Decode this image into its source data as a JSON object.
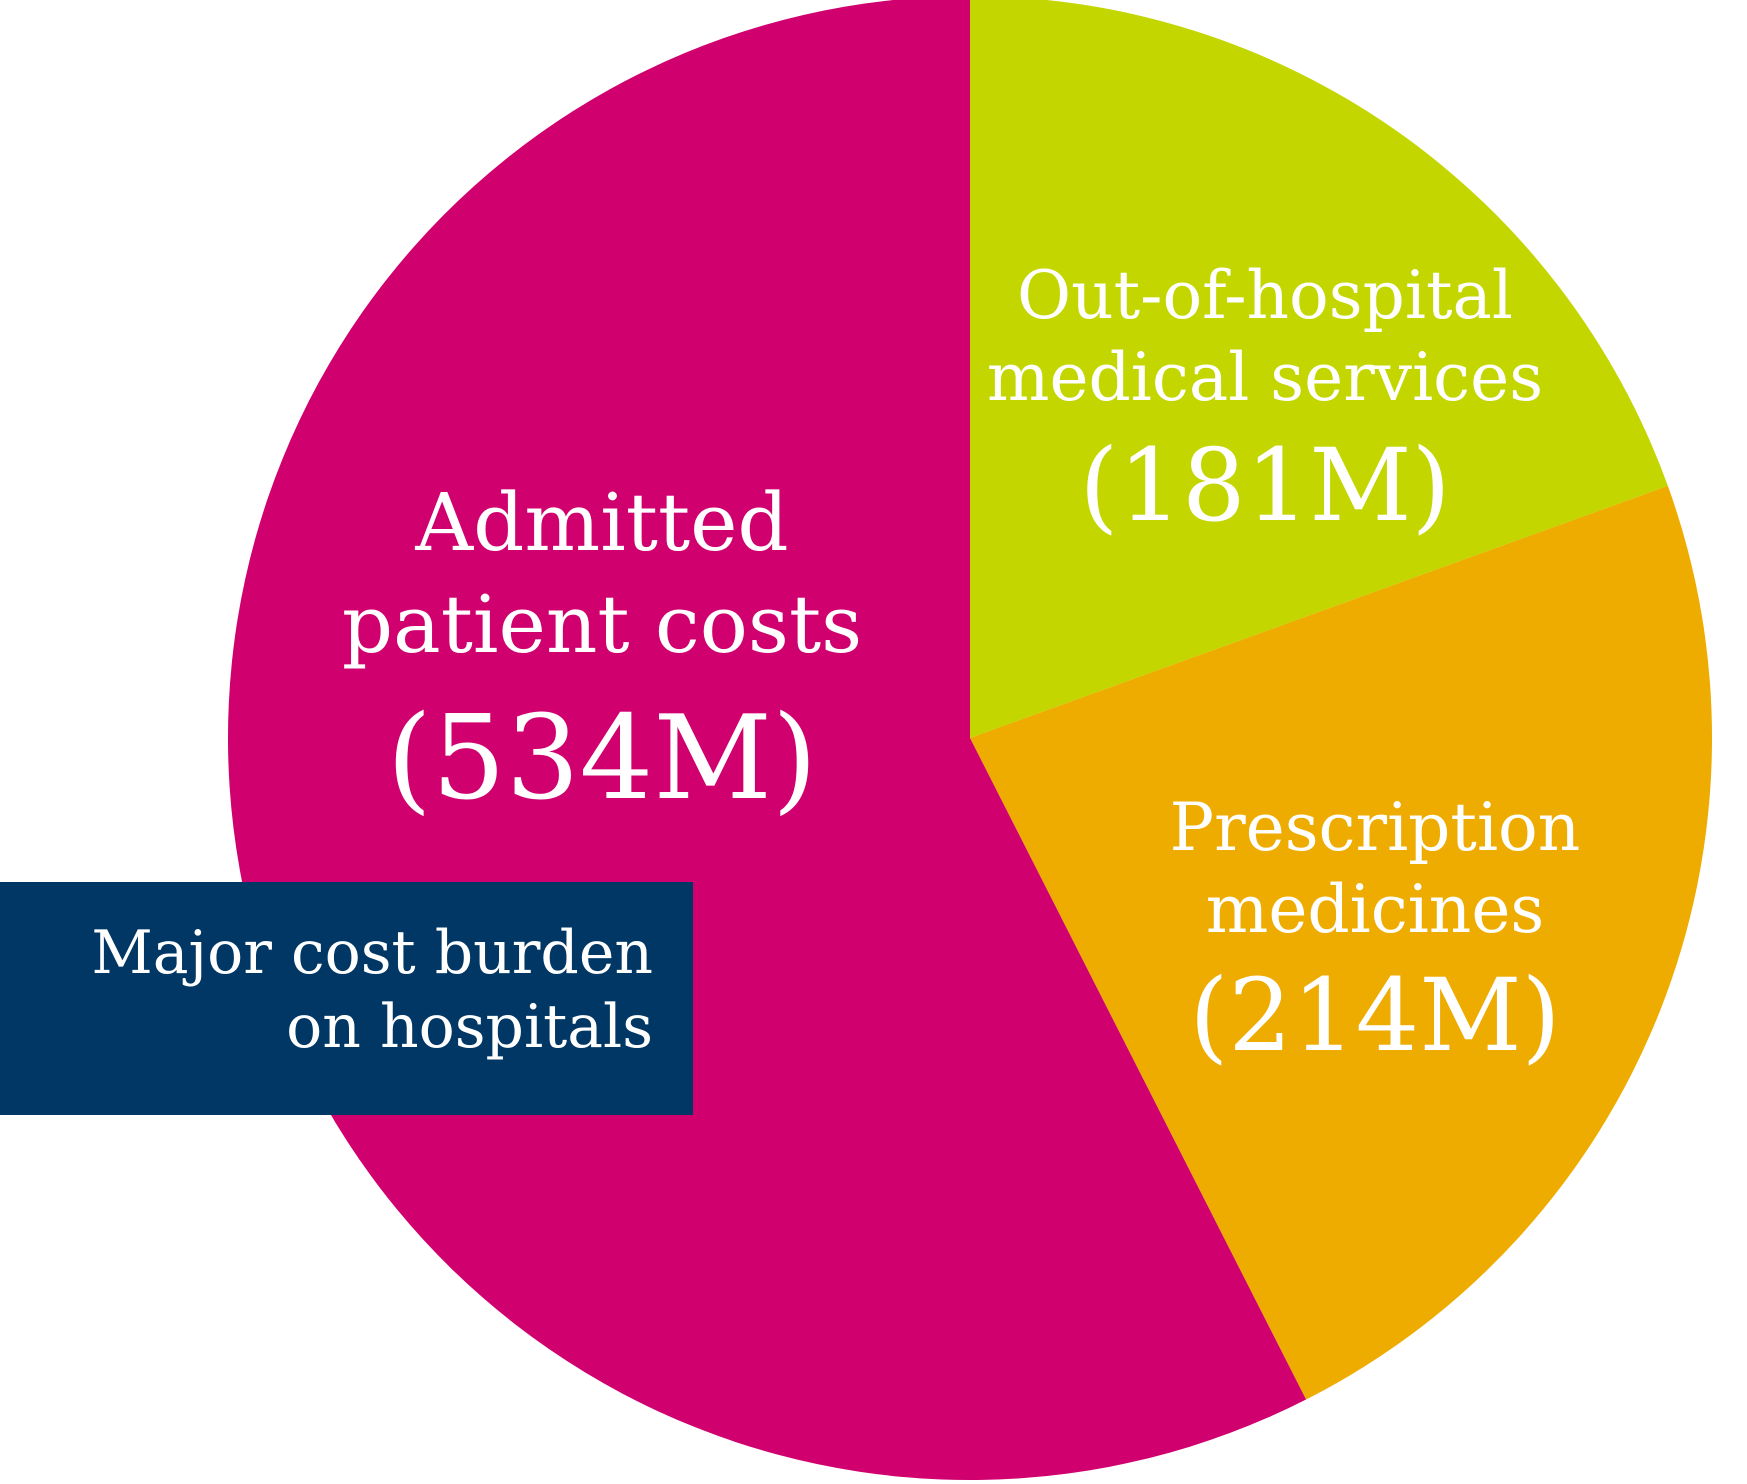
{
  "chart_data": {
    "type": "pie",
    "title": "",
    "slices": [
      {
        "name_lines": [
          "Out-of-hospital",
          "medical services"
        ],
        "value_label": "(181M)",
        "value": 181,
        "color": "#c3d600"
      },
      {
        "name_lines": [
          "Prescription",
          "medicines"
        ],
        "value_label": "(214M)",
        "value": 214,
        "color": "#eeab00"
      },
      {
        "name_lines": [
          "Admitted",
          "patient costs"
        ],
        "value_label": "(534M)",
        "value": 534,
        "color": "#d0006f"
      }
    ],
    "start": "12 o'clock",
    "direction": "clockwise"
  },
  "callout": {
    "lines": [
      "Major cost burden",
      "on hospitals"
    ],
    "color": "#003764"
  }
}
